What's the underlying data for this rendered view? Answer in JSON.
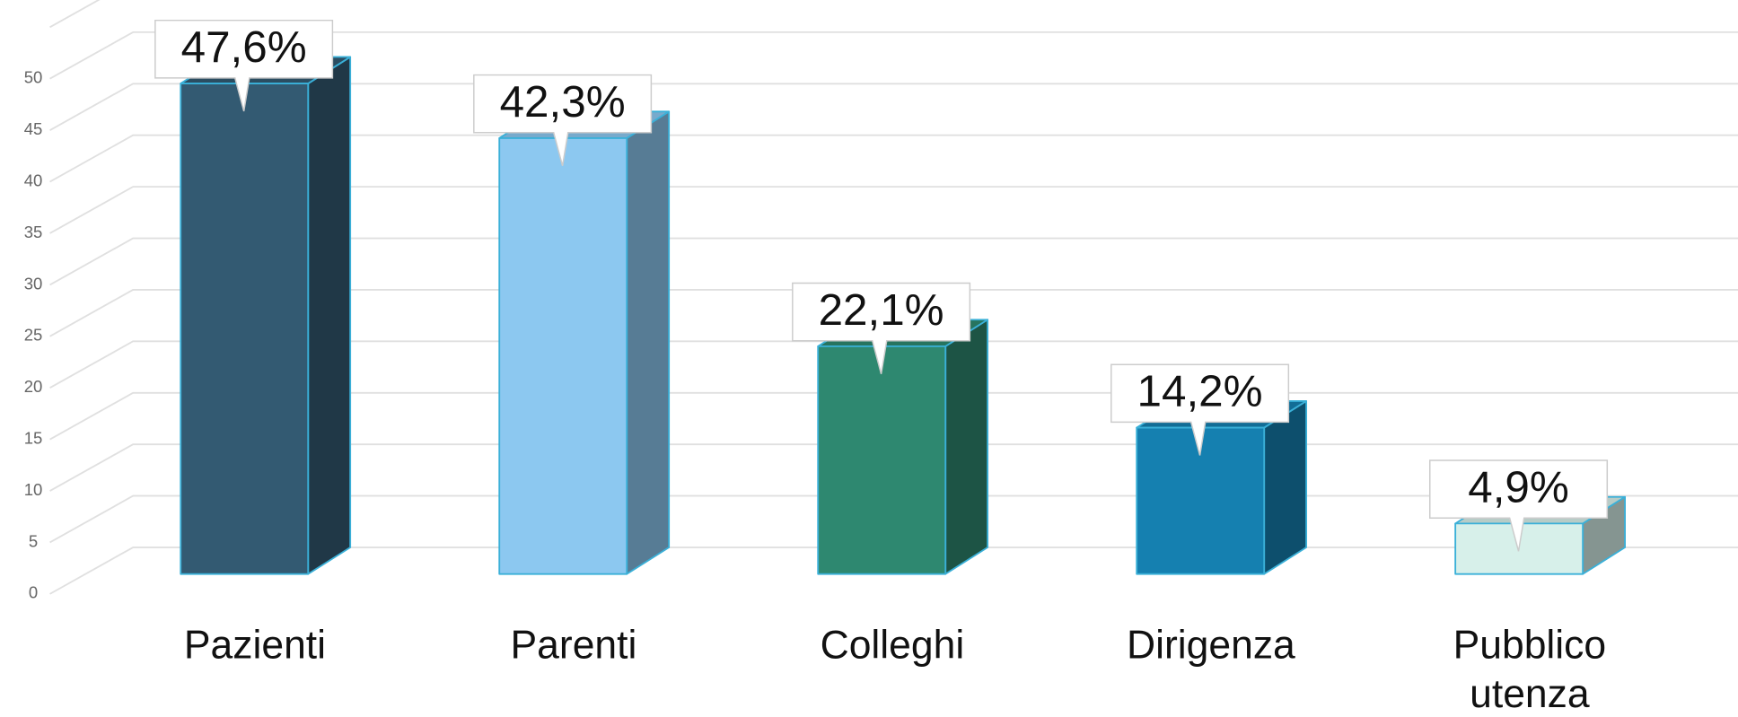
{
  "chart_data": {
    "type": "bar3d",
    "categories": [
      "Pazienti",
      "Parenti",
      "Colleghi",
      "Dirigenza",
      "Pubblico\nutenza"
    ],
    "values": [
      47.6,
      42.3,
      22.1,
      14.2,
      4.9
    ],
    "value_labels": [
      "47,6%",
      "42,3%",
      "22,1%",
      "14,2%",
      "4,9%"
    ],
    "colors": [
      "#335a72",
      "#8cc8f0",
      "#2e8870",
      "#1580b0",
      "#d7f0ea"
    ],
    "ylim": [
      0,
      55
    ],
    "yticks": [
      0,
      5,
      10,
      15,
      20,
      25,
      30,
      35,
      40,
      45,
      50
    ],
    "grid": true
  }
}
